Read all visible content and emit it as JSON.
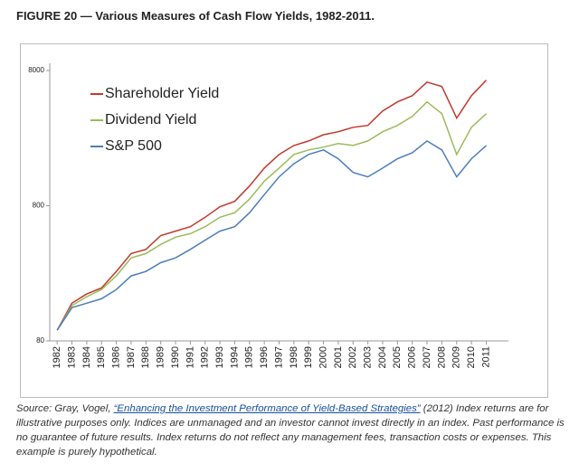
{
  "chart_data": {
    "type": "line",
    "title": "FIGURE 20 — Various Measures of Cash Flow Yields, 1982-2011.",
    "x": [
      1982,
      1983,
      1984,
      1985,
      1986,
      1987,
      1988,
      1989,
      1990,
      1991,
      1992,
      1993,
      1994,
      1995,
      1996,
      1997,
      1998,
      1999,
      2000,
      2001,
      2002,
      2003,
      2004,
      2005,
      2006,
      2007,
      2008,
      2009,
      2010,
      2011
    ],
    "series": [
      {
        "name": "Shareholder Yield",
        "color": "#c0392b",
        "values": [
          96,
          152,
          178,
          197,
          261,
          354,
          380,
          481,
          519,
          560,
          657,
          785,
          862,
          1119,
          1519,
          1915,
          2230,
          2410,
          2680,
          2820,
          3040,
          3140,
          4020,
          4690,
          5210,
          6570,
          6100,
          3560,
          5210,
          6780
        ]
      },
      {
        "name": "Dividend Yield",
        "color": "#9bbb59",
        "values": [
          96,
          146,
          170,
          192,
          242,
          329,
          354,
          414,
          468,
          497,
          560,
          657,
          709,
          895,
          1215,
          1519,
          1915,
          2070,
          2170,
          2310,
          2230,
          2410,
          2820,
          3140,
          3660,
          4690,
          3840,
          1915,
          3040,
          3840
        ]
      },
      {
        "name": "S&P 500",
        "color": "#4a7ebb",
        "values": [
          96,
          141,
          152,
          164,
          192,
          242,
          261,
          303,
          329,
          380,
          445,
          519,
          560,
          709,
          966,
          1307,
          1635,
          1915,
          2070,
          1780,
          1410,
          1307,
          1519,
          1780,
          1970,
          2410,
          2070,
          1307,
          1780,
          2230
        ]
      }
    ],
    "xlim": [
      1981.5,
      2012.5
    ],
    "xticks": [
      1982,
      1983,
      1984,
      1985,
      1986,
      1987,
      1988,
      1989,
      1990,
      1991,
      1992,
      1993,
      1994,
      1995,
      1996,
      1997,
      1998,
      1999,
      2000,
      2001,
      2002,
      2003,
      2004,
      2005,
      2006,
      2007,
      2008,
      2009,
      2010,
      2011
    ],
    "ylim": [
      80,
      8000
    ],
    "yticks": [
      80,
      800,
      8000
    ],
    "log_scale": true,
    "grid": false,
    "legend": "upper left",
    "note": {
      "prefix": "Source: Gray, Vogel, ",
      "link": "“Enhancing the Investment Performance of Yield-Based Strategies”",
      "suffix": " (2012) Index returns are for illustrative purposes only.  Indices are unmanaged and an investor cannot invest directly in an index.  Past performance is no guarantee of future results.  Index returns do not reflect any management fees, transaction costs or expenses.  This example is purely hypothetical."
    }
  }
}
